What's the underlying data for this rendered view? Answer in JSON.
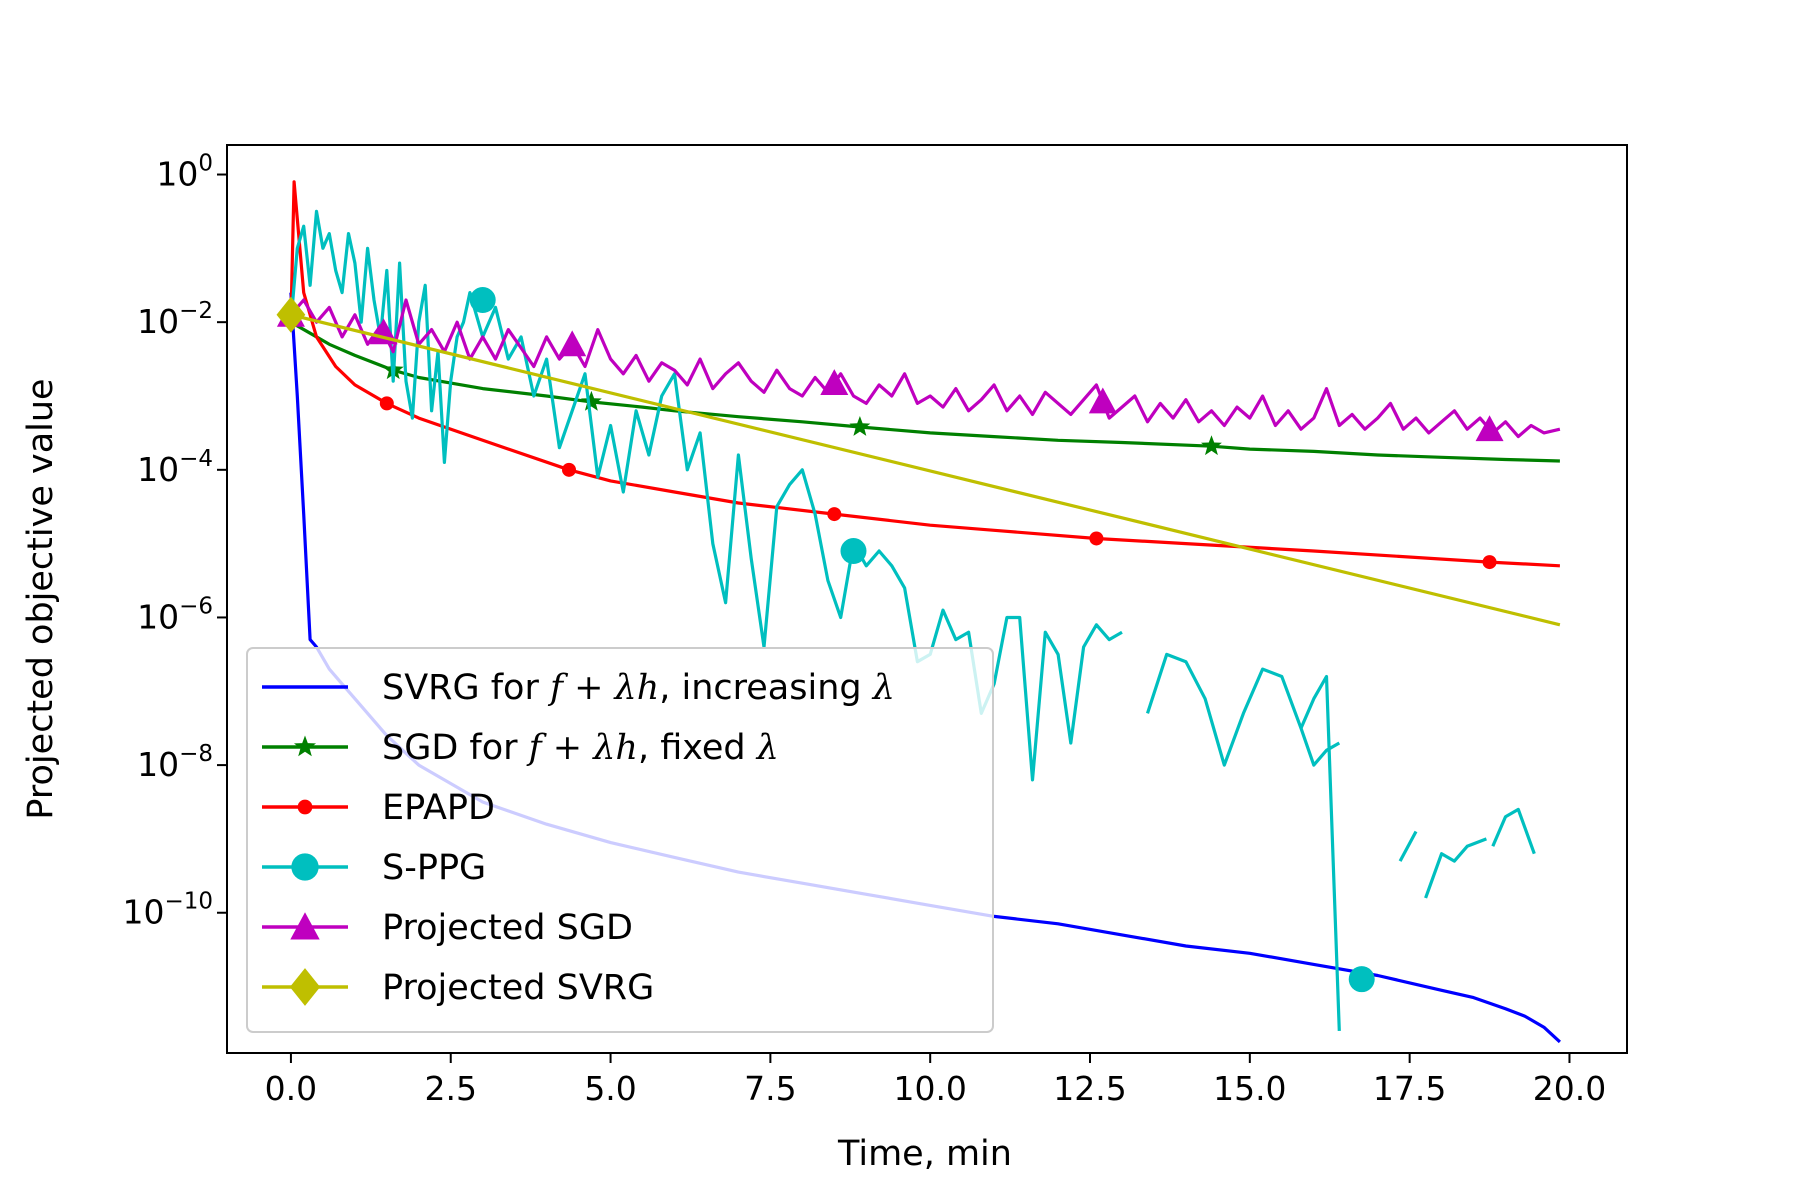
{
  "chart_data": {
    "type": "line",
    "xlabel": "Time, min",
    "ylabel": "Projected objective value",
    "xlim": [
      -1.0,
      20.9
    ],
    "ylim_log10": [
      -11.9,
      0.4
    ],
    "yscale": "log",
    "grid": false,
    "legend_position": "lower-left",
    "x_ticks": [
      {
        "value": 0.0,
        "label": "0.0"
      },
      {
        "value": 2.5,
        "label": "2.5"
      },
      {
        "value": 5.0,
        "label": "5.0"
      },
      {
        "value": 7.5,
        "label": "7.5"
      },
      {
        "value": 10.0,
        "label": "10.0"
      },
      {
        "value": 12.5,
        "label": "12.5"
      },
      {
        "value": 15.0,
        "label": "15.0"
      },
      {
        "value": 17.5,
        "label": "17.5"
      },
      {
        "value": 20.0,
        "label": "20.0"
      }
    ],
    "y_ticks": [
      {
        "exp": 0,
        "base": "10",
        "sup": "0"
      },
      {
        "exp": -2,
        "base": "10",
        "sup": "−2"
      },
      {
        "exp": -4,
        "base": "10",
        "sup": "−4"
      },
      {
        "exp": -6,
        "base": "10",
        "sup": "−6"
      },
      {
        "exp": -8,
        "base": "10",
        "sup": "−8"
      },
      {
        "exp": -10,
        "base": "10",
        "sup": "−10"
      }
    ],
    "series": [
      {
        "name": "svrg-increasing",
        "legend": {
          "pre": "SVRG for ",
          "math": "f + λh",
          "post": ", increasing ",
          "math2": "λ"
        },
        "color": "#0000ff",
        "marker": "none",
        "x": [
          0.0,
          0.1,
          0.2,
          0.3,
          0.4,
          0.6,
          0.8,
          1.0,
          1.5,
          2.0,
          3.0,
          4.0,
          5.0,
          6.0,
          7.0,
          8.0,
          9.0,
          10.0,
          11.0,
          12.0,
          13.0,
          14.0,
          15.0,
          16.0,
          17.0,
          18.0,
          18.5,
          19.0,
          19.3,
          19.6,
          19.85
        ],
        "log10y": [
          -1.6,
          -3.0,
          -4.6,
          -6.3,
          -6.4,
          -6.7,
          -6.9,
          -7.1,
          -7.6,
          -8.0,
          -8.5,
          -8.8,
          -9.05,
          -9.25,
          -9.45,
          -9.6,
          -9.75,
          -9.9,
          -10.05,
          -10.15,
          -10.3,
          -10.45,
          -10.55,
          -10.7,
          -10.85,
          -11.05,
          -11.15,
          -11.3,
          -11.4,
          -11.55,
          -11.75
        ]
      },
      {
        "name": "sgd-fixed",
        "legend": {
          "pre": "SGD for ",
          "math": "f + λh",
          "post": ", fixed ",
          "math2": "λ"
        },
        "color": "#008000",
        "marker": "star",
        "marker_x": [
          1.6,
          4.7,
          8.9,
          14.4
        ],
        "x": [
          0.0,
          0.3,
          0.6,
          1.0,
          1.6,
          2.0,
          3.0,
          4.0,
          4.7,
          5.5,
          6.0,
          7.0,
          8.0,
          8.9,
          10.0,
          11.0,
          12.0,
          13.0,
          14.4,
          15.0,
          16.0,
          17.0,
          18.0,
          19.0,
          19.85
        ],
        "log10y": [
          -2.0,
          -2.15,
          -2.3,
          -2.45,
          -2.65,
          -2.75,
          -2.9,
          -3.0,
          -3.08,
          -3.15,
          -3.2,
          -3.28,
          -3.35,
          -3.42,
          -3.5,
          -3.55,
          -3.6,
          -3.63,
          -3.68,
          -3.72,
          -3.75,
          -3.8,
          -3.83,
          -3.86,
          -3.88
        ]
      },
      {
        "name": "epapd",
        "legend": {
          "pre": "EPAPD"
        },
        "color": "#ff0000",
        "marker": "dot",
        "marker_x": [
          1.5,
          4.35,
          8.5,
          12.6,
          18.75
        ],
        "x": [
          0.0,
          0.05,
          0.1,
          0.2,
          0.4,
          0.7,
          1.0,
          1.5,
          2.0,
          3.0,
          4.35,
          5.0,
          6.0,
          7.0,
          8.5,
          10.0,
          11.0,
          12.6,
          14.0,
          16.0,
          18.75,
          19.85
        ],
        "log10y": [
          -2.0,
          -0.1,
          -0.6,
          -1.6,
          -2.2,
          -2.6,
          -2.85,
          -3.1,
          -3.3,
          -3.6,
          -4.0,
          -4.15,
          -4.3,
          -4.45,
          -4.6,
          -4.75,
          -4.82,
          -4.93,
          -5.0,
          -5.1,
          -5.25,
          -5.3
        ]
      },
      {
        "name": "s-ppg",
        "legend": {
          "pre": "S-PPG"
        },
        "color": "#00bfbf",
        "marker": "circle",
        "marker_pts": [
          [
            3.0,
            -1.7
          ],
          [
            8.8,
            -5.1
          ],
          [
            16.75,
            -10.9
          ]
        ],
        "segments": [
          {
            "x": [
              0.0,
              0.1,
              0.2,
              0.3,
              0.4,
              0.5,
              0.6,
              0.7,
              0.8,
              0.9,
              1.0,
              1.1,
              1.2,
              1.3,
              1.4,
              1.5,
              1.6,
              1.7,
              1.8,
              1.9,
              2.0,
              2.1,
              2.2,
              2.3,
              2.4,
              2.5,
              2.6,
              2.7,
              2.8,
              3.0,
              3.2,
              3.4,
              3.6,
              3.8,
              4.0,
              4.2,
              4.4,
              4.6,
              4.8,
              5.0,
              5.2,
              5.4,
              5.6,
              5.8,
              6.0,
              6.2,
              6.4,
              6.6,
              6.8,
              7.0,
              7.2,
              7.4,
              7.6,
              7.8,
              8.0,
              8.2,
              8.4,
              8.6,
              8.8,
              9.0,
              9.2,
              9.4,
              9.6,
              9.8,
              10.0,
              10.2,
              10.4,
              10.6,
              10.8,
              11.0,
              11.2,
              11.4,
              11.6,
              11.8,
              12.0,
              12.2,
              12.4,
              12.6,
              12.8,
              13.0
            ],
            "log10y": [
              -2.0,
              -1.0,
              -0.7,
              -1.5,
              -0.5,
              -1.0,
              -0.8,
              -1.3,
              -1.6,
              -0.8,
              -1.2,
              -2.0,
              -1.0,
              -1.7,
              -2.2,
              -1.3,
              -2.8,
              -1.2,
              -2.8,
              -3.3,
              -2.0,
              -1.5,
              -3.2,
              -2.4,
              -3.9,
              -2.8,
              -2.2,
              -2.0,
              -1.6,
              -2.2,
              -1.8,
              -2.5,
              -2.2,
              -3.0,
              -2.5,
              -3.7,
              -3.2,
              -2.7,
              -4.1,
              -3.4,
              -4.3,
              -3.2,
              -3.8,
              -3.0,
              -2.7,
              -4.0,
              -3.5,
              -5.0,
              -5.8,
              -3.8,
              -5.2,
              -6.4,
              -4.5,
              -4.2,
              -4.0,
              -4.6,
              -5.5,
              -6.0,
              -5.0,
              -5.3,
              -5.1,
              -5.3,
              -5.6,
              -6.6,
              -6.5,
              -5.9,
              -6.3,
              -6.2,
              -7.3,
              -6.9,
              -6.0,
              -6.0,
              -8.2,
              -6.2,
              -6.5,
              -7.7,
              -6.4,
              -6.1,
              -6.3,
              -6.2
            ]
          },
          {
            "x": [
              13.4,
              13.7,
              14.0,
              14.3,
              14.6,
              14.9,
              15.2,
              15.5,
              15.8,
              16.0,
              16.2,
              16.4
            ],
            "log10y": [
              -7.3,
              -6.5,
              -6.6,
              -7.1,
              -8.0,
              -7.3,
              -6.7,
              -6.8,
              -7.5,
              -8.0,
              -7.8,
              -7.7
            ]
          },
          {
            "x": [
              15.8,
              16.0,
              16.2,
              16.4
            ],
            "log10y": [
              -7.5,
              -7.1,
              -6.8,
              -11.6
            ]
          },
          {
            "x": [
              17.35,
              17.6
            ],
            "log10y": [
              -9.3,
              -8.9
            ]
          },
          {
            "x": [
              17.75,
              18.0,
              18.2,
              18.4,
              18.7
            ],
            "log10y": [
              -9.8,
              -9.2,
              -9.3,
              -9.1,
              -9.0
            ]
          },
          {
            "x": [
              18.8,
              19.0,
              19.2,
              19.45
            ],
            "log10y": [
              -9.1,
              -8.7,
              -8.6,
              -9.2
            ]
          }
        ]
      },
      {
        "name": "projected-sgd",
        "legend": {
          "pre": "Projected SGD"
        },
        "color": "#bf00bf",
        "marker": "triangle",
        "marker_x": [
          0.0,
          1.45,
          4.4,
          8.5,
          12.7,
          18.75
        ],
        "x": [
          0.0,
          0.2,
          0.4,
          0.6,
          0.8,
          1.0,
          1.2,
          1.4,
          1.6,
          1.8,
          2.0,
          2.2,
          2.4,
          2.6,
          2.8,
          3.0,
          3.2,
          3.4,
          3.6,
          3.8,
          4.0,
          4.2,
          4.4,
          4.6,
          4.8,
          5.0,
          5.2,
          5.4,
          5.6,
          5.8,
          6.0,
          6.2,
          6.4,
          6.6,
          6.8,
          7.0,
          7.2,
          7.4,
          7.6,
          7.8,
          8.0,
          8.2,
          8.4,
          8.6,
          8.8,
          9.0,
          9.2,
          9.4,
          9.6,
          9.8,
          10.0,
          10.2,
          10.4,
          10.6,
          10.8,
          11.0,
          11.2,
          11.4,
          11.6,
          11.8,
          12.0,
          12.2,
          12.4,
          12.6,
          12.8,
          13.0,
          13.2,
          13.4,
          13.6,
          13.8,
          14.0,
          14.2,
          14.4,
          14.6,
          14.8,
          15.0,
          15.2,
          15.4,
          15.6,
          15.8,
          16.0,
          16.2,
          16.4,
          16.6,
          16.8,
          17.0,
          17.2,
          17.4,
          17.6,
          17.8,
          18.0,
          18.2,
          18.4,
          18.6,
          18.8,
          19.0,
          19.2,
          19.4,
          19.6,
          19.85
        ],
        "log10y": [
          -1.9,
          -1.7,
          -2.0,
          -1.8,
          -2.2,
          -1.9,
          -2.3,
          -2.05,
          -2.4,
          -1.7,
          -2.3,
          -2.1,
          -2.4,
          -2.0,
          -2.5,
          -2.2,
          -2.5,
          -2.1,
          -2.35,
          -2.6,
          -2.2,
          -2.5,
          -2.3,
          -2.6,
          -2.1,
          -2.5,
          -2.7,
          -2.45,
          -2.8,
          -2.55,
          -2.65,
          -2.85,
          -2.5,
          -2.9,
          -2.7,
          -2.55,
          -2.8,
          -2.95,
          -2.65,
          -2.9,
          -3.0,
          -2.75,
          -2.95,
          -2.7,
          -3.0,
          -3.1,
          -2.85,
          -3.0,
          -2.7,
          -3.1,
          -3.0,
          -3.15,
          -2.9,
          -3.2,
          -3.05,
          -2.85,
          -3.2,
          -3.0,
          -3.25,
          -2.95,
          -3.1,
          -3.25,
          -3.05,
          -2.85,
          -3.3,
          -3.15,
          -3.0,
          -3.35,
          -3.1,
          -3.3,
          -3.05,
          -3.35,
          -3.2,
          -3.4,
          -3.15,
          -3.3,
          -3.0,
          -3.4,
          -3.2,
          -3.45,
          -3.3,
          -2.9,
          -3.4,
          -3.25,
          -3.45,
          -3.3,
          -3.1,
          -3.45,
          -3.3,
          -3.5,
          -3.35,
          -3.2,
          -3.45,
          -3.3,
          -3.5,
          -3.35,
          -3.55,
          -3.4,
          -3.5,
          -3.45
        ]
      },
      {
        "name": "projected-svrg",
        "legend": {
          "pre": "Projected SVRG"
        },
        "color": "#bfbf00",
        "marker": "diamond",
        "marker_x": [
          0.0
        ],
        "x": [
          0.0,
          19.85
        ],
        "log10y": [
          -1.9,
          -6.1
        ]
      }
    ]
  }
}
